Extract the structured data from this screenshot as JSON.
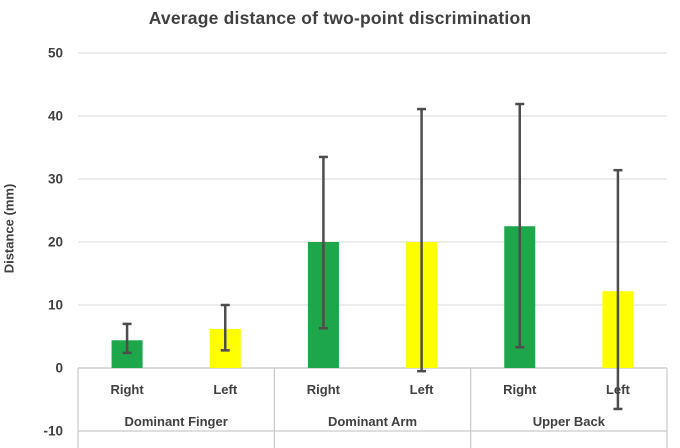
{
  "title": "Average distance of two-point discrimination",
  "colors": {
    "bar_green": "#1DA64A",
    "bar_yellow": "#FFFF00",
    "error_bar": "#4D4D4D",
    "gridline": "#E2E2E2",
    "table_border": "#C9C9C9",
    "text": "#404040",
    "background": "#FFFFFF"
  },
  "chart_data": {
    "type": "bar",
    "title": "Average distance of two-point discrimination",
    "xlabel": "",
    "ylabel": "Distance (mm)",
    "ylim": [
      -10,
      50
    ],
    "yticks": [
      50,
      40,
      30,
      20,
      10,
      0,
      -10
    ],
    "grid": true,
    "legend": false,
    "error_bars": true,
    "groups": [
      {
        "label": "Dominant Finger",
        "bars": [
          {
            "label": "Right",
            "value": 4.4,
            "color": "bar_green",
            "error_low": 2.4,
            "error_high": 7.0
          },
          {
            "label": "Left",
            "value": 6.2,
            "color": "bar_yellow",
            "error_low": 2.8,
            "error_high": 10.0
          }
        ]
      },
      {
        "label": "Dominant Arm",
        "bars": [
          {
            "label": "Right",
            "value": 20.0,
            "color": "bar_green",
            "error_low": 6.3,
            "error_high": 33.5
          },
          {
            "label": "Left",
            "value": 20.0,
            "color": "bar_yellow",
            "error_low": -0.5,
            "error_high": 41.1
          }
        ]
      },
      {
        "label": "Upper Back",
        "bars": [
          {
            "label": "Right",
            "value": 22.5,
            "color": "bar_green",
            "error_low": 3.3,
            "error_high": 41.9
          },
          {
            "label": "Left",
            "value": 12.2,
            "color": "bar_yellow",
            "error_low": -6.5,
            "error_high": 31.4
          }
        ]
      }
    ]
  }
}
